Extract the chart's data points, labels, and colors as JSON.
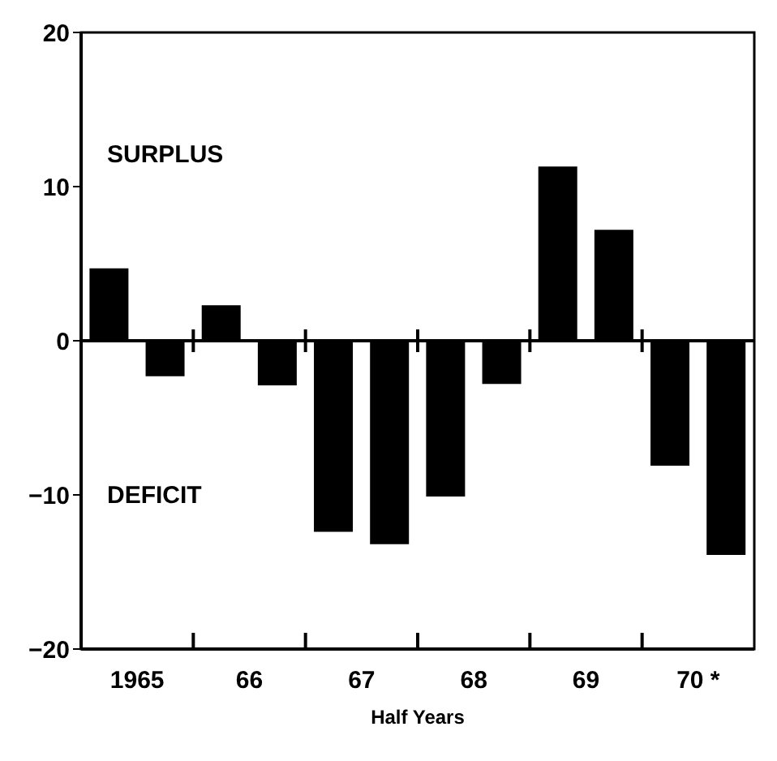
{
  "chart_data": {
    "type": "bar",
    "xlabel": "Half Years",
    "categories": [
      "1965",
      null,
      "66",
      null,
      "67",
      null,
      "68",
      null,
      "69",
      null,
      "70 *",
      null
    ],
    "values": [
      4.7,
      -2.3,
      2.3,
      -2.9,
      -12.4,
      -13.2,
      -10.1,
      -2.8,
      11.3,
      7.2,
      -8.1,
      -13.9
    ],
    "color": "#000000",
    "ylim": [
      -20,
      20
    ],
    "yticks": [
      -20,
      -10,
      0,
      10,
      20
    ],
    "annotations": [
      "SURPLUS",
      "DEFICIT"
    ]
  }
}
